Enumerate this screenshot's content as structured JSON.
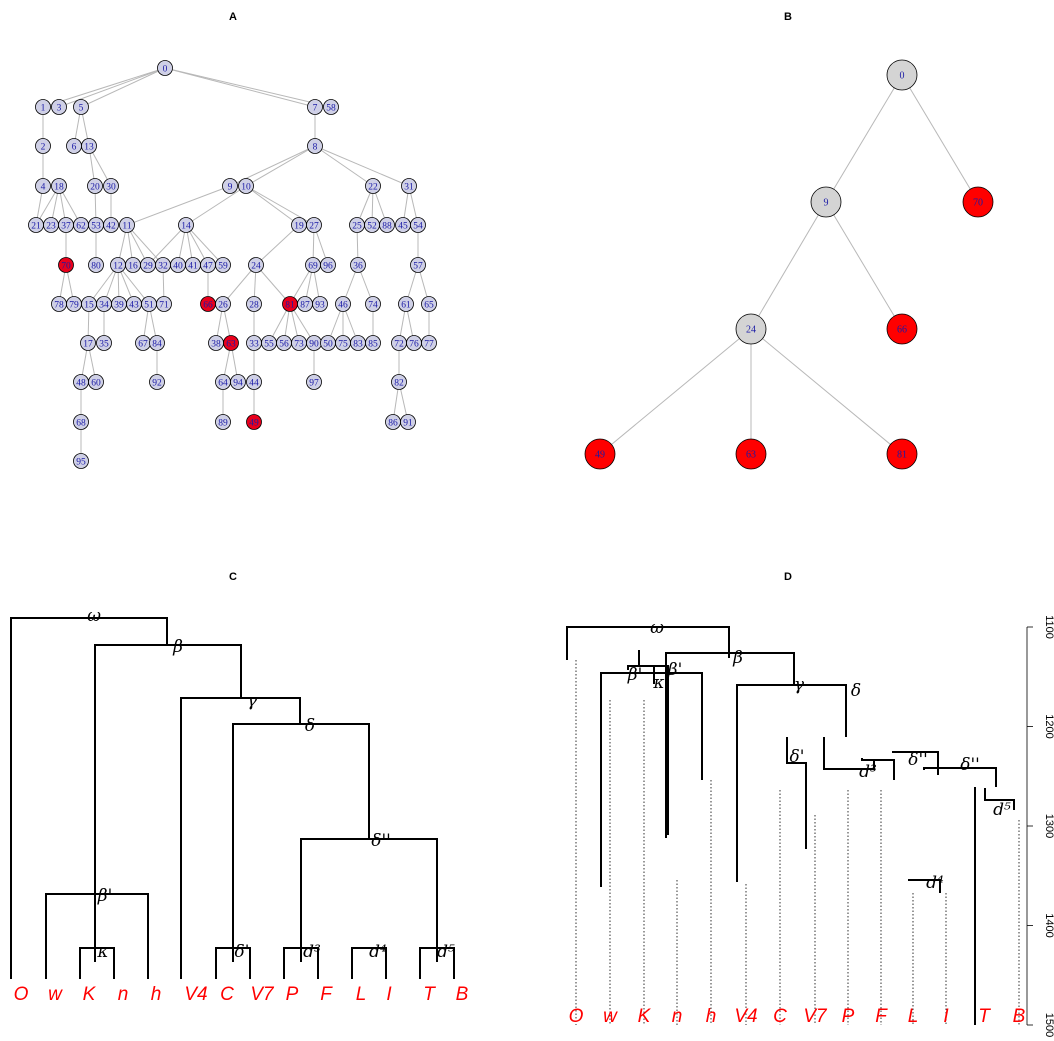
{
  "panels": {
    "A": "A",
    "B": "B",
    "C": "C",
    "D": "D"
  },
  "colors": {
    "node_default": "#cfd0e6",
    "node_highlight": "#e8001c",
    "node_b_default": "#d4d4d4",
    "node_b_highlight": "#ff0000",
    "node_label": "#1a1aa6",
    "edge": "#b8b8b8",
    "leaf_label": "#ff0000"
  },
  "graphA": {
    "highlighted": [
      "70",
      "66",
      "81",
      "49",
      "63"
    ],
    "nodes": [
      "0",
      "1",
      "3",
      "5",
      "7",
      "58",
      "2",
      "6",
      "13",
      "8",
      "4",
      "18",
      "20",
      "30",
      "9",
      "10",
      "22",
      "31",
      "21",
      "23",
      "37",
      "62",
      "53",
      "42",
      "11",
      "14",
      "19",
      "27",
      "25",
      "52",
      "88",
      "45",
      "54",
      "70",
      "80",
      "12",
      "16",
      "29",
      "32",
      "40",
      "41",
      "47",
      "59",
      "24",
      "69",
      "96",
      "36",
      "57",
      "78",
      "79",
      "15",
      "34",
      "39",
      "43",
      "51",
      "71",
      "66",
      "26",
      "28",
      "81",
      "87",
      "93",
      "46",
      "74",
      "61",
      "65",
      "17",
      "35",
      "67",
      "84",
      "38",
      "63",
      "33",
      "55",
      "56",
      "73",
      "90",
      "50",
      "75",
      "83",
      "85",
      "72",
      "76",
      "77",
      "48",
      "60",
      "92",
      "64",
      "94",
      "44",
      "97",
      "82",
      "68",
      "89",
      "49",
      "86",
      "91",
      "95"
    ],
    "edges": [
      [
        "0",
        "1"
      ],
      [
        "0",
        "3"
      ],
      [
        "0",
        "5"
      ],
      [
        "0",
        "7"
      ],
      [
        "0",
        "58"
      ],
      [
        "1",
        "2"
      ],
      [
        "2",
        "4"
      ],
      [
        "4",
        "21"
      ],
      [
        "5",
        "6"
      ],
      [
        "5",
        "13"
      ],
      [
        "13",
        "20"
      ],
      [
        "13",
        "30"
      ],
      [
        "18",
        "21"
      ],
      [
        "18",
        "23"
      ],
      [
        "18",
        "37"
      ],
      [
        "18",
        "62"
      ],
      [
        "37",
        "70"
      ],
      [
        "70",
        "78"
      ],
      [
        "70",
        "79"
      ],
      [
        "20",
        "53"
      ],
      [
        "53",
        "80"
      ],
      [
        "30",
        "42"
      ],
      [
        "7",
        "8"
      ],
      [
        "8",
        "9"
      ],
      [
        "8",
        "10"
      ],
      [
        "8",
        "22"
      ],
      [
        "8",
        "31"
      ],
      [
        "9",
        "11"
      ],
      [
        "10",
        "14"
      ],
      [
        "10",
        "19"
      ],
      [
        "10",
        "27"
      ],
      [
        "11",
        "12"
      ],
      [
        "11",
        "16"
      ],
      [
        "11",
        "29"
      ],
      [
        "11",
        "32"
      ],
      [
        "12",
        "15"
      ],
      [
        "12",
        "34"
      ],
      [
        "12",
        "39"
      ],
      [
        "12",
        "43"
      ],
      [
        "12",
        "51"
      ],
      [
        "15",
        "17"
      ],
      [
        "34",
        "35"
      ],
      [
        "17",
        "48"
      ],
      [
        "17",
        "60"
      ],
      [
        "48",
        "68"
      ],
      [
        "68",
        "95"
      ],
      [
        "51",
        "67"
      ],
      [
        "51",
        "84"
      ],
      [
        "84",
        "92"
      ],
      [
        "32",
        "71"
      ],
      [
        "14",
        "29"
      ],
      [
        "14",
        "40"
      ],
      [
        "14",
        "41"
      ],
      [
        "14",
        "47"
      ],
      [
        "14",
        "59"
      ],
      [
        "47",
        "66"
      ],
      [
        "19",
        "24"
      ],
      [
        "27",
        "69"
      ],
      [
        "27",
        "96"
      ],
      [
        "24",
        "26"
      ],
      [
        "24",
        "28"
      ],
      [
        "24",
        "81"
      ],
      [
        "26",
        "38"
      ],
      [
        "26",
        "63"
      ],
      [
        "63",
        "64"
      ],
      [
        "63",
        "94"
      ],
      [
        "64",
        "89"
      ],
      [
        "28",
        "33"
      ],
      [
        "33",
        "44"
      ],
      [
        "44",
        "49"
      ],
      [
        "69",
        "81"
      ],
      [
        "69",
        "87"
      ],
      [
        "69",
        "93"
      ],
      [
        "81",
        "55"
      ],
      [
        "81",
        "56"
      ],
      [
        "81",
        "73"
      ],
      [
        "81",
        "90"
      ],
      [
        "90",
        "97"
      ],
      [
        "22",
        "25"
      ],
      [
        "22",
        "52"
      ],
      [
        "22",
        "88"
      ],
      [
        "25",
        "36"
      ],
      [
        "36",
        "46"
      ],
      [
        "36",
        "74"
      ],
      [
        "46",
        "50"
      ],
      [
        "46",
        "75"
      ],
      [
        "46",
        "83"
      ],
      [
        "74",
        "85"
      ],
      [
        "31",
        "45"
      ],
      [
        "31",
        "54"
      ],
      [
        "54",
        "57"
      ],
      [
        "57",
        "61"
      ],
      [
        "57",
        "65"
      ],
      [
        "61",
        "72"
      ],
      [
        "61",
        "76"
      ],
      [
        "65",
        "77"
      ],
      [
        "72",
        "82"
      ],
      [
        "82",
        "86"
      ],
      [
        "82",
        "91"
      ]
    ]
  },
  "graphB": {
    "nodes": [
      {
        "id": "0",
        "highlight": false
      },
      {
        "id": "9",
        "highlight": false
      },
      {
        "id": "70",
        "highlight": true
      },
      {
        "id": "24",
        "highlight": false
      },
      {
        "id": "66",
        "highlight": true
      },
      {
        "id": "49",
        "highlight": true
      },
      {
        "id": "63",
        "highlight": true
      },
      {
        "id": "81",
        "highlight": true
      }
    ],
    "edges": [
      [
        "0",
        "9"
      ],
      [
        "0",
        "70"
      ],
      [
        "9",
        "24"
      ],
      [
        "9",
        "66"
      ],
      [
        "24",
        "49"
      ],
      [
        "24",
        "63"
      ],
      [
        "24",
        "81"
      ]
    ]
  },
  "treeC": {
    "leaves": [
      "O",
      "w",
      "K",
      "n",
      "h",
      "V4",
      "C",
      "V7",
      "P",
      "F",
      "L",
      "I",
      "T",
      "B"
    ],
    "internal_labels": [
      "ω",
      "β",
      "γ",
      "δ",
      "δ''",
      "β'",
      "κ",
      "δ'",
      "d³",
      "d⁴",
      "d⁵"
    ],
    "height_units": "relative"
  },
  "treeD": {
    "leaves": [
      "O",
      "w",
      "K",
      "n",
      "h",
      "V4",
      "C",
      "V7",
      "P",
      "F",
      "L",
      "I",
      "T",
      "B"
    ],
    "internal_labels": [
      "ω",
      "β",
      "β'",
      "β'",
      "κ",
      "γ",
      "δ",
      "δ'",
      "δ''",
      "δ''",
      "d³",
      "d⁴",
      "d⁵"
    ],
    "axis": {
      "ticks": [
        "1100",
        "1200",
        "1300",
        "1400",
        "1500"
      ],
      "range": [
        1100,
        1500
      ],
      "reversed": true,
      "side": "right"
    }
  }
}
